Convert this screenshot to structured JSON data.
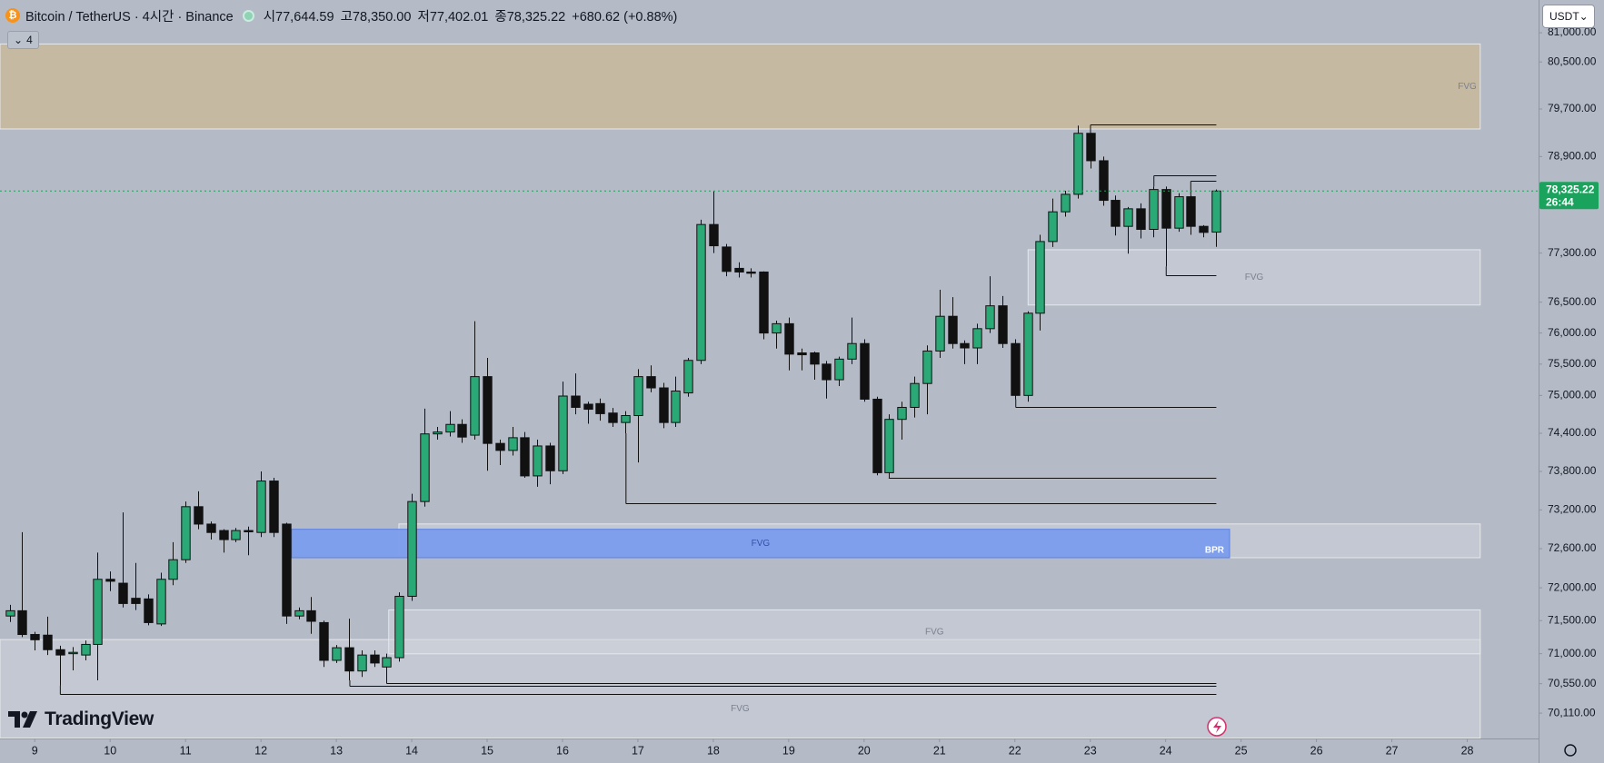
{
  "toolbar": {
    "symbol": "Bitcoin / TetherUS · 4시간 · Binance",
    "ohlc": [
      "시77,644.59",
      "고78,350.00",
      "저77,402.01",
      "종78,325.22"
    ],
    "change": "+680.62 (+0.88%)",
    "indicator_count": 4,
    "currency": "USDT",
    "logo": "TradingView",
    "countdown": "26:44"
  },
  "chart_data": {
    "type": "candlestick",
    "log_scale": true,
    "up_color": "#2aa876",
    "down_color": "#111111",
    "outline_color": "#111111",
    "xlim": [
      8.539,
      28.946
    ],
    "xticks": [
      9,
      10,
      11,
      12,
      13,
      14,
      15,
      16,
      17,
      18,
      19,
      20,
      21,
      22,
      23,
      24,
      25,
      26,
      27,
      28
    ],
    "ylim": [
      69734,
      81565
    ],
    "yticks": [
      {
        "value": 81000,
        "label": "81,000.00"
      },
      {
        "value": 80500,
        "label": "80,500.00"
      },
      {
        "value": 79700,
        "label": "79,700.00"
      },
      {
        "value": 78900,
        "label": "78,900.00"
      },
      {
        "value": 77300,
        "label": "77,300.00"
      },
      {
        "value": 76500,
        "label": "76,500.00"
      },
      {
        "value": 76000,
        "label": "76,000.00"
      },
      {
        "value": 75500,
        "label": "75,500.00"
      },
      {
        "value": 75000,
        "label": "75,000.00"
      },
      {
        "value": 74400,
        "label": "74,400.00"
      },
      {
        "value": 73800,
        "label": "73,800.00"
      },
      {
        "value": 73200,
        "label": "73,200.00"
      },
      {
        "value": 72600,
        "label": "72,600.00"
      },
      {
        "value": 72000,
        "label": "72,000.00"
      },
      {
        "value": 71500,
        "label": "71,500.00"
      },
      {
        "value": 71000,
        "label": "71,000.00"
      },
      {
        "value": 70550,
        "label": "70,550.00"
      },
      {
        "value": 70110,
        "label": "70,110.00"
      }
    ],
    "x": [
      8.6667,
      8.8333,
      9,
      9.1667,
      9.3333,
      9.5,
      9.6667,
      9.8333,
      10,
      10.1667,
      10.3333,
      10.5,
      10.6667,
      10.8333,
      11,
      11.1667,
      11.3333,
      11.5,
      11.6667,
      11.8333,
      12,
      12.1667,
      12.3333,
      12.5,
      12.6667,
      12.8333,
      13,
      13.1667,
      13.3333,
      13.5,
      13.6667,
      13.8333,
      14,
      14.1667,
      14.3333,
      14.5,
      14.6667,
      14.8333,
      15,
      15.1667,
      15.3333,
      15.5,
      15.6667,
      15.8333,
      16,
      16.1667,
      16.3333,
      16.5,
      16.6667,
      16.8333,
      17,
      17.1667,
      17.3333,
      17.5,
      17.6667,
      17.8333,
      18,
      18.1667,
      18.3333,
      18.5,
      18.6667,
      18.8333,
      19,
      19.1667,
      19.3333,
      19.5,
      19.6667,
      19.8333,
      20,
      20.1667,
      20.3333,
      20.5,
      20.6667,
      20.8333,
      21,
      21.1667,
      21.3333,
      21.5,
      21.6667,
      21.8333,
      22,
      22.1667,
      22.3333,
      22.5,
      22.6667,
      22.8333,
      23,
      23.1667,
      23.3333,
      23.5,
      23.6667,
      23.8333,
      24,
      24.1667,
      24.3333,
      24.5,
      24.6667
    ],
    "open": [
      71570,
      71650,
      71290,
      71280,
      71060,
      71000,
      70980,
      71140,
      72130,
      72070,
      71840,
      71830,
      71450,
      72130,
      72430,
      73250,
      72980,
      72880,
      72740,
      72880,
      72850,
      73650,
      72980,
      71570,
      71650,
      71470,
      70900,
      71090,
      70740,
      70980,
      70800,
      70940,
      71870,
      73330,
      74390,
      74420,
      74540,
      74370,
      75300,
      74240,
      74130,
      74330,
      73730,
      74200,
      73810,
      74990,
      74860,
      74870,
      74720,
      74570,
      74680,
      75300,
      75120,
      74570,
      75040,
      75560,
      77770,
      77400,
      77050,
      76990,
      76990,
      76000,
      76150,
      75680,
      75680,
      75500,
      75250,
      75580,
      75830,
      74940,
      73780,
      74620,
      74810,
      75190,
      75710,
      76270,
      75830,
      75760,
      76070,
      76440,
      75830,
      75000,
      76320,
      77490,
      77980,
      78270,
      79290,
      78830,
      78170,
      77740,
      78030,
      77690,
      78350,
      77710,
      78230,
      77740,
      77644.59
    ],
    "high": [
      71740,
      72855,
      71330,
      71560,
      71120,
      71100,
      71200,
      72540,
      72250,
      73160,
      72380,
      71900,
      72230,
      72700,
      73330,
      73490,
      73020,
      72900,
      72920,
      72940,
      73800,
      73700,
      73000,
      71700,
      71860,
      71500,
      71130,
      71530,
      71050,
      71050,
      71000,
      71930,
      73450,
      74790,
      74500,
      74750,
      74620,
      76190,
      75600,
      74300,
      74500,
      74420,
      74300,
      74250,
      75220,
      75350,
      74900,
      74950,
      74800,
      74750,
      75420,
      75480,
      75200,
      75300,
      75600,
      77850,
      78330,
      77450,
      77150,
      77050,
      77000,
      76200,
      76250,
      75750,
      75700,
      75550,
      75620,
      76250,
      75900,
      74980,
      74700,
      74900,
      75300,
      75800,
      76700,
      76580,
      75880,
      76150,
      76920,
      76600,
      75900,
      76350,
      77600,
      78200,
      78330,
      79420,
      79300,
      78900,
      78250,
      78060,
      78120,
      78400,
      78400,
      78290,
      78260,
      77760,
      78350
    ],
    "low": [
      71480,
      71250,
      71050,
      70980,
      70520,
      70750,
      70900,
      70600,
      71950,
      71700,
      71660,
      71430,
      71420,
      72040,
      72380,
      72900,
      72740,
      72540,
      72700,
      72500,
      72780,
      72780,
      71450,
      71520,
      71300,
      70800,
      70860,
      70600,
      70650,
      70800,
      70750,
      70880,
      71800,
      73250,
      74300,
      74350,
      74250,
      74300,
      73810,
      73900,
      74050,
      73700,
      73560,
      73600,
      73760,
      74700,
      74550,
      74600,
      74500,
      74400,
      73940,
      75050,
      74480,
      74500,
      74980,
      75500,
      77300,
      76920,
      76900,
      76900,
      75900,
      75750,
      75400,
      75400,
      75250,
      74950,
      75150,
      75500,
      74900,
      73740,
      73700,
      74300,
      74650,
      74700,
      75600,
      75750,
      75500,
      75500,
      76000,
      75760,
      74940,
      74900,
      76040,
      77400,
      77900,
      78200,
      78700,
      78080,
      77590,
      77290,
      77540,
      77560,
      77080,
      77650,
      77600,
      77560,
      77402.01
    ],
    "close": [
      71650,
      71290,
      71210,
      71060,
      70980,
      71020,
      71140,
      72130,
      72100,
      71760,
      71760,
      71470,
      72130,
      72430,
      73250,
      72980,
      72850,
      72740,
      72880,
      72860,
      73650,
      72850,
      71570,
      71650,
      71490,
      70900,
      71090,
      70740,
      70980,
      70860,
      70940,
      71870,
      73330,
      74390,
      74420,
      74540,
      74340,
      75300,
      74240,
      74130,
      74330,
      73730,
      74200,
      73810,
      74990,
      74810,
      74780,
      74710,
      74570,
      74680,
      75300,
      75120,
      74570,
      75070,
      75560,
      77770,
      77420,
      77000,
      76990,
      76970,
      76000,
      76150,
      75660,
      75650,
      75500,
      75250,
      75580,
      75830,
      74940,
      73780,
      74620,
      74810,
      75190,
      75710,
      76270,
      75830,
      75760,
      76070,
      76440,
      75830,
      75000,
      76320,
      77490,
      77980,
      78270,
      79290,
      78830,
      78170,
      77740,
      78030,
      77690,
      78350,
      77710,
      78230,
      77740,
      77640,
      78325.22
    ],
    "last_price": {
      "value": 78325.22,
      "label": "78,325.22"
    },
    "price_line_color": "#1aa35c",
    "zones": [
      {
        "label": "FVG",
        "label_align": "bottom",
        "top": 71213,
        "bottom": 69740,
        "x0": 8.539,
        "x1": 28.172,
        "color": "#d2d6dd"
      },
      {
        "label": "FVG",
        "label_align": "center",
        "top": 71663,
        "bottom": 70998,
        "x0": 13.695,
        "x1": 28.172,
        "color": "#d2d6dd"
      },
      {
        "top": 72982,
        "bottom": 72461,
        "x0": 13.83,
        "x1": 28.172,
        "color": "#d2d6dd"
      },
      {
        "label": "FVG",
        "label_align": "center",
        "tag": "BPR",
        "top": 72900,
        "bottom": 72461,
        "x0": 12.406,
        "x1": 24.848,
        "color": "#7b9ded"
      },
      {
        "label": "FVG",
        "label_align": "center",
        "top": 77355,
        "bottom": 76453,
        "x0": 22.175,
        "x1": 28.172,
        "color": "#d2d6dd"
      },
      {
        "label": "FVG",
        "label_align": "right",
        "top": 80807,
        "bottom": 79363,
        "x0": 8.539,
        "x1": 28.172,
        "color": "#c9b89b"
      }
    ],
    "levels": [
      {
        "price": 79440,
        "x0": 23.003,
        "x1": 24.672
      },
      {
        "price": 78590,
        "x0": 23.844,
        "x1": 24.672
      },
      {
        "price": 78490,
        "x0": 24.333,
        "x1": 24.672
      },
      {
        "price": 76935,
        "x0": 24.007,
        "x1": 24.672
      },
      {
        "price": 74810,
        "x0": 22.012,
        "x1": 24.672
      },
      {
        "price": 73700,
        "x0": 20.33,
        "x1": 24.672
      },
      {
        "price": 73300,
        "x0": 16.842,
        "x1": 24.672
      },
      {
        "price": 70565,
        "x0": 13.668,
        "x1": 24.672
      },
      {
        "price": 70520,
        "x0": 13.179,
        "x1": 24.672
      },
      {
        "price": 70400,
        "x0": 9.339,
        "x1": 24.672
      }
    ]
  }
}
